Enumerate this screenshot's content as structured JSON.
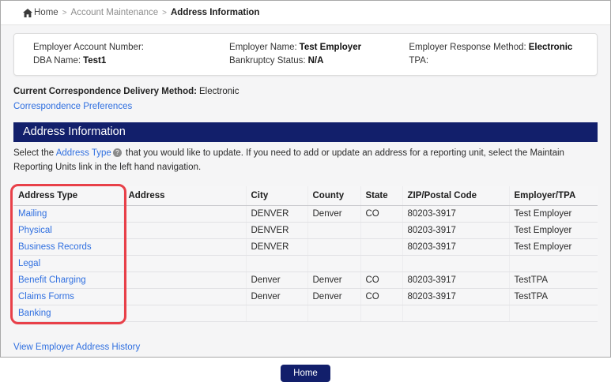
{
  "breadcrumb": {
    "separator": ">",
    "items": [
      {
        "label": "Home"
      },
      {
        "label": "Account Maintenance"
      },
      {
        "label": "Address Information"
      }
    ]
  },
  "employer_panel": {
    "fields": [
      {
        "label": "Employer Account Number:",
        "value": ""
      },
      {
        "label": "DBA Name:",
        "value": "Test1"
      },
      {
        "label": "Employer Name:",
        "value": "Test Employer"
      },
      {
        "label": "Bankruptcy Status:",
        "value": "N/A"
      },
      {
        "label": "Employer Response Method:",
        "value": "Electronic"
      },
      {
        "label": "TPA:",
        "value": ""
      }
    ]
  },
  "correspondence": {
    "label": "Current Correspondence Delivery Method:",
    "value": "Electronic",
    "preferences_link": "Correspondence Preferences"
  },
  "section": {
    "title": "Address Information"
  },
  "intro": {
    "prefix": "Select the ",
    "link": "Address Type",
    "help_glyph": "?",
    "suffix": " that you would like to update. If you need to add or update an address for a reporting unit, select the Maintain Reporting Units link in the left hand navigation."
  },
  "table": {
    "columns": [
      "Address Type",
      "Address",
      "City",
      "County",
      "State",
      "ZIP/Postal Code",
      "Employer/TPA"
    ],
    "rows": [
      {
        "cells": [
          "Mailing",
          "",
          "DENVER",
          "Denver",
          "CO",
          "80203-3917",
          "Test Employer"
        ]
      },
      {
        "cells": [
          "Physical",
          "",
          "DENVER",
          "",
          "",
          "80203-3917",
          "Test Employer"
        ]
      },
      {
        "cells": [
          "Business Records",
          "",
          "DENVER",
          "",
          "",
          "80203-3917",
          "Test Employer"
        ]
      },
      {
        "cells": [
          "Legal",
          "",
          "",
          "",
          "",
          "",
          ""
        ]
      },
      {
        "cells": [
          "Benefit Charging",
          "",
          "Denver",
          "Denver",
          "CO",
          "80203-3917",
          "TestTPA"
        ]
      },
      {
        "cells": [
          "Claims Forms",
          "",
          "Denver",
          "Denver",
          "CO",
          "80203-3917",
          "TestTPA"
        ]
      },
      {
        "cells": [
          "Banking",
          "",
          "",
          "",
          "",
          "",
          ""
        ]
      }
    ]
  },
  "footer": {
    "history_link": "View Employer Address History",
    "home_label": "Home"
  },
  "colors": {
    "navy": "#121f6b",
    "link_blue": "#2f6fe0",
    "highlight_red": "#e84049"
  }
}
